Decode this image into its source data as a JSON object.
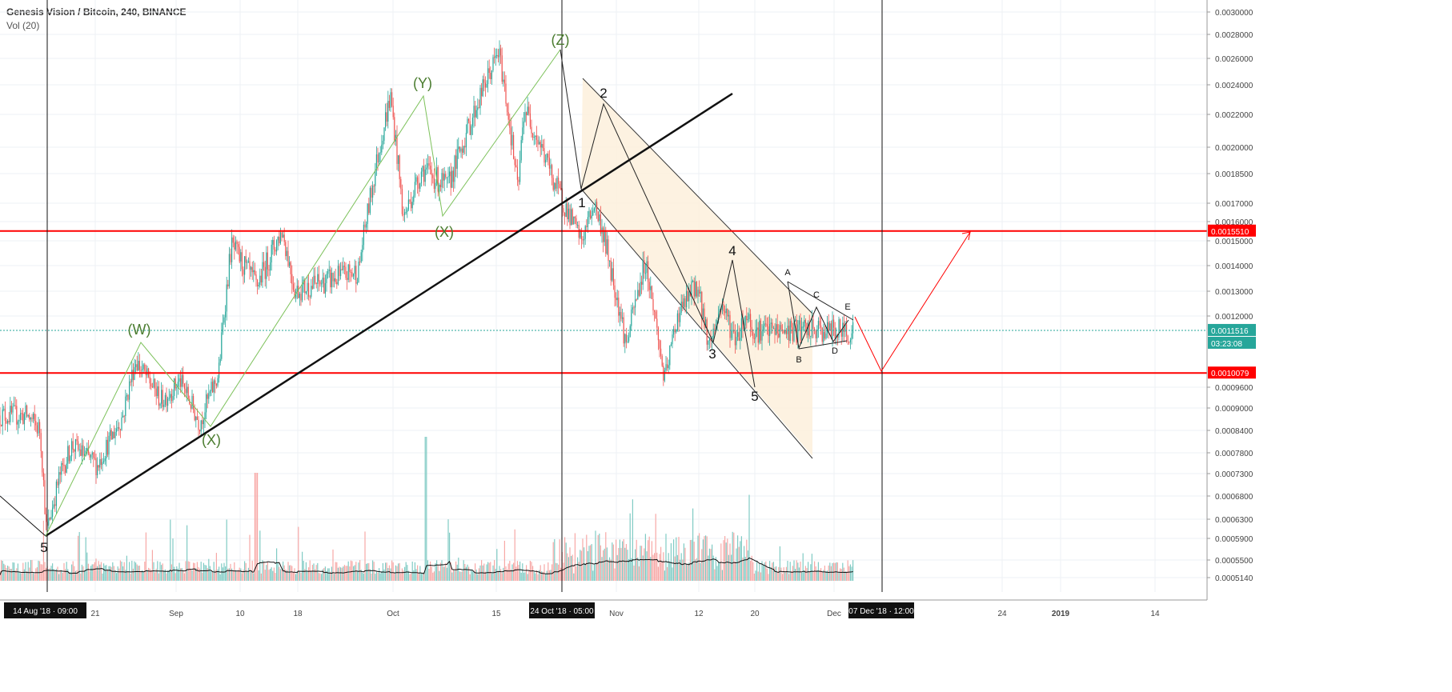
{
  "header": {
    "symbol_title": "Genesis Vision / Bitcoin, 240, BINANCE",
    "volume_label": "Vol (20)"
  },
  "colors": {
    "up": "#26a69a",
    "down": "#ef5350",
    "vol_up": "#80cbc4",
    "vol_down": "#f7a8a6",
    "support_resistance": "#ff0000",
    "wave_labels": "#4a7c2f",
    "wave_lines": "#7cc15a",
    "channel_fill": "#fdf0dc",
    "price_badge": "#26a69a"
  },
  "chart_data": {
    "type": "candlestick",
    "title": "Genesis Vision / Bitcoin, 240, BINANCE",
    "ylim": [
      0.000514,
      0.003
    ],
    "y_ticks": [
      "0.0030000",
      "0.0028000",
      "0.0026000",
      "0.0024000",
      "0.0022000",
      "0.0020000",
      "0.0018500",
      "0.0017000",
      "0.0016000",
      "0.0015000",
      "0.0014000",
      "0.0013000",
      "0.0012000",
      "0.0009600",
      "0.0009000",
      "0.0008400",
      "0.0007800",
      "0.0007300",
      "0.0006800",
      "0.0006300",
      "0.0005900",
      "0.0005500",
      "0.0005140"
    ],
    "x_ticks": [
      "21",
      "Sep",
      "10",
      "18",
      "Oct",
      "15",
      "Nov",
      "12",
      "20",
      "Dec",
      "24",
      "2019",
      "14"
    ],
    "x_markers": [
      "14 Aug '18 · 09:00",
      "24 Oct '18 · 05:00",
      "07 Dec '18 · 12:00"
    ],
    "price_labels": {
      "upper_level": "0.0015510",
      "last_price": "0.0011516",
      "countdown": "03:23:08",
      "lower_level": "0.0010079"
    },
    "series_close_points": [
      {
        "t": "Aug 11",
        "v": 0.00088
      },
      {
        "t": "Aug 13",
        "v": 0.00084
      },
      {
        "t": "Aug 14",
        "v": 0.0006
      },
      {
        "t": "Aug 16",
        "v": 0.00072
      },
      {
        "t": "Aug 18",
        "v": 0.0008
      },
      {
        "t": "Aug 22",
        "v": 0.00075
      },
      {
        "t": "Aug 26",
        "v": 0.00088
      },
      {
        "t": "Aug 28",
        "v": 0.00105
      },
      {
        "t": "Sep 1",
        "v": 0.00092
      },
      {
        "t": "Sep 4",
        "v": 0.00098
      },
      {
        "t": "Sep 7",
        "v": 0.00086
      },
      {
        "t": "Sep 10",
        "v": 0.001
      },
      {
        "t": "Sep 12",
        "v": 0.00148
      },
      {
        "t": "Sep 16",
        "v": 0.00132
      },
      {
        "t": "Sep 20",
        "v": 0.00155
      },
      {
        "t": "Sep 22",
        "v": 0.0013
      },
      {
        "t": "Oct 2",
        "v": 0.00138
      },
      {
        "t": "Oct 5",
        "v": 0.00195
      },
      {
        "t": "Oct 7",
        "v": 0.00232
      },
      {
        "t": "Oct 9",
        "v": 0.00162
      },
      {
        "t": "Oct 12",
        "v": 0.00188
      },
      {
        "t": "Oct 16",
        "v": 0.00178
      },
      {
        "t": "Oct 20",
        "v": 0.0022
      },
      {
        "t": "Oct 24",
        "v": 0.00265
      },
      {
        "t": "Oct 27",
        "v": 0.00175
      },
      {
        "t": "Oct 28",
        "v": 0.00225
      },
      {
        "t": "Nov 2",
        "v": 0.00178
      },
      {
        "t": "Nov 6",
        "v": 0.0015
      },
      {
        "t": "Nov 8",
        "v": 0.0017
      },
      {
        "t": "Nov 13",
        "v": 0.0011
      },
      {
        "t": "Nov 16",
        "v": 0.00142
      },
      {
        "t": "Nov 19",
        "v": 0.00098
      },
      {
        "t": "Nov 21",
        "v": 0.0012
      },
      {
        "t": "Nov 24",
        "v": 0.00133
      },
      {
        "t": "Nov 26",
        "v": 0.0011
      },
      {
        "t": "Nov 28",
        "v": 0.00125
      },
      {
        "t": "Nov 30",
        "v": 0.00112
      },
      {
        "t": "Dec 2",
        "v": 0.00121
      },
      {
        "t": "Dec 3",
        "v": 0.00115
      }
    ],
    "horizontal_levels": [
      0.001551,
      0.0010079
    ],
    "wave_labels": [
      "(W)",
      "(X)",
      "(Y)",
      "(X)",
      "(Z)",
      "1",
      "2",
      "3",
      "4",
      "5",
      "5",
      "A",
      "B",
      "C",
      "D",
      "E"
    ]
  }
}
